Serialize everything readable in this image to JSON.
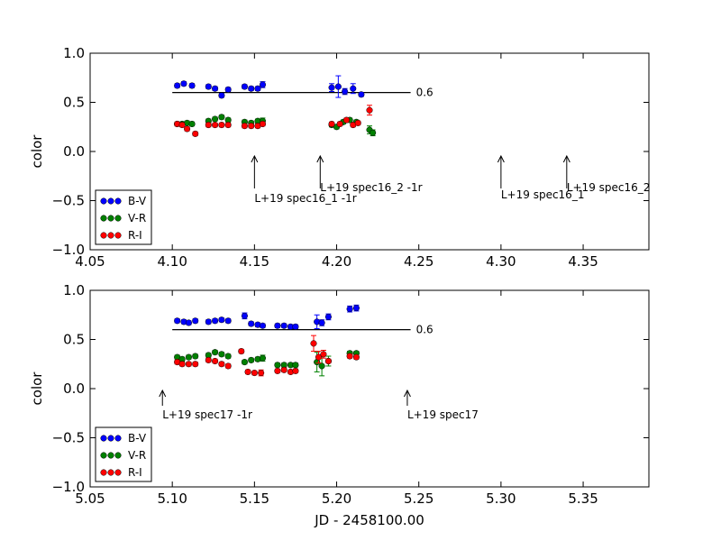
{
  "chart_data": [
    {
      "type": "scatter",
      "title": "",
      "xlabel": "",
      "ylabel": "color",
      "xlim": [
        4.05,
        4.39
      ],
      "ylim": [
        -1.0,
        1.0
      ],
      "xticks": [
        "4.05",
        "4.10",
        "4.15",
        "4.20",
        "4.25",
        "4.30",
        "4.35"
      ],
      "xtick_values": [
        4.05,
        4.1,
        4.15,
        4.2,
        4.25,
        4.3,
        4.35
      ],
      "yticks": [
        "1.0",
        "0.5",
        "0.0",
        "−0.5",
        "−1.0"
      ],
      "ytick_values": [
        1.0,
        0.5,
        0.0,
        -0.5,
        -1.0
      ],
      "reference_line": {
        "y": 0.6,
        "x_start": 4.1,
        "x_end": 4.245,
        "label": "0.6"
      },
      "legend": {
        "location": "lower-left",
        "entries": [
          "B-V",
          "V-R",
          "R-I"
        ]
      },
      "series": [
        {
          "name": "B-V",
          "color": "#0000ff",
          "x": [
            4.103,
            4.107,
            4.112,
            4.122,
            4.126,
            4.13,
            4.134,
            4.144,
            4.148,
            4.152,
            4.155,
            4.197,
            4.201,
            4.205,
            4.21,
            4.215
          ],
          "y": [
            0.67,
            0.69,
            0.67,
            0.66,
            0.64,
            0.57,
            0.63,
            0.66,
            0.64,
            0.64,
            0.68,
            0.65,
            0.66,
            0.61,
            0.64,
            0.58
          ],
          "err": [
            0.02,
            0.02,
            0.02,
            0.02,
            0.02,
            0.02,
            0.02,
            0.02,
            0.02,
            0.02,
            0.03,
            0.04,
            0.11,
            0.03,
            0.05,
            0.02
          ]
        },
        {
          "name": "V-R",
          "color": "#008000",
          "x": [
            4.103,
            4.106,
            4.109,
            4.112,
            4.122,
            4.126,
            4.13,
            4.134,
            4.144,
            4.148,
            4.152,
            4.155,
            4.197,
            4.2,
            4.204,
            4.208,
            4.212,
            4.22,
            4.222
          ],
          "y": [
            0.28,
            0.28,
            0.29,
            0.28,
            0.31,
            0.33,
            0.35,
            0.32,
            0.3,
            0.29,
            0.31,
            0.31,
            0.27,
            0.25,
            0.3,
            0.32,
            0.3,
            0.22,
            0.19
          ],
          "err": [
            0.02,
            0.02,
            0.02,
            0.02,
            0.02,
            0.02,
            0.02,
            0.02,
            0.02,
            0.02,
            0.02,
            0.03,
            0.02,
            0.02,
            0.02,
            0.02,
            0.02,
            0.04,
            0.03
          ]
        },
        {
          "name": "R-I",
          "color": "#ff0000",
          "x": [
            4.103,
            4.106,
            4.109,
            4.114,
            4.122,
            4.126,
            4.13,
            4.134,
            4.144,
            4.148,
            4.152,
            4.155,
            4.197,
            4.202,
            4.206,
            4.21,
            4.213,
            4.22
          ],
          "y": [
            0.28,
            0.27,
            0.23,
            0.18,
            0.27,
            0.27,
            0.27,
            0.27,
            0.26,
            0.26,
            0.26,
            0.28,
            0.28,
            0.28,
            0.32,
            0.27,
            0.29,
            0.42
          ],
          "err": [
            0.02,
            0.02,
            0.02,
            0.02,
            0.02,
            0.02,
            0.02,
            0.02,
            0.02,
            0.02,
            0.02,
            0.02,
            0.02,
            0.02,
            0.02,
            0.02,
            0.02,
            0.05
          ]
        }
      ],
      "annotations": [
        {
          "text": "L+19 spec16_1 -1r",
          "x": 4.15
        },
        {
          "text": "L+19 spec16_2 -1r",
          "x": 4.19
        },
        {
          "text": "L+19 spec16_1",
          "x": 4.3
        },
        {
          "text": "L+19 spec16_2",
          "x": 4.34
        }
      ]
    },
    {
      "type": "scatter",
      "title": "",
      "xlabel": "JD - 2458100.00",
      "ylabel": "color",
      "xlim": [
        5.05,
        5.39
      ],
      "ylim": [
        -1.0,
        1.0
      ],
      "xticks": [
        "5.05",
        "5.10",
        "5.15",
        "5.20",
        "5.25",
        "5.30",
        "5.35"
      ],
      "xtick_values": [
        5.05,
        5.1,
        5.15,
        5.2,
        5.25,
        5.3,
        5.35
      ],
      "yticks": [
        "1.0",
        "0.5",
        "0.0",
        "−0.5",
        "−1.0"
      ],
      "ytick_values": [
        1.0,
        0.5,
        0.0,
        -0.5,
        -1.0
      ],
      "reference_line": {
        "y": 0.6,
        "x_start": 5.1,
        "x_end": 5.245,
        "label": "0.6"
      },
      "legend": {
        "location": "lower-left",
        "entries": [
          "B-V",
          "V-R",
          "R-I"
        ]
      },
      "series": [
        {
          "name": "B-V",
          "color": "#0000ff",
          "x": [
            5.103,
            5.107,
            5.11,
            5.114,
            5.122,
            5.126,
            5.13,
            5.134,
            5.144,
            5.148,
            5.152,
            5.155,
            5.164,
            5.168,
            5.172,
            5.175,
            5.188,
            5.191,
            5.195,
            5.208,
            5.212
          ],
          "y": [
            0.69,
            0.68,
            0.67,
            0.69,
            0.68,
            0.69,
            0.7,
            0.69,
            0.74,
            0.66,
            0.65,
            0.64,
            0.64,
            0.64,
            0.63,
            0.63,
            0.68,
            0.67,
            0.73,
            0.81,
            0.82
          ],
          "err": [
            0.02,
            0.02,
            0.02,
            0.02,
            0.02,
            0.02,
            0.02,
            0.02,
            0.03,
            0.02,
            0.02,
            0.02,
            0.02,
            0.02,
            0.02,
            0.02,
            0.07,
            0.03,
            0.03,
            0.03,
            0.03
          ]
        },
        {
          "name": "V-R",
          "color": "#008000",
          "x": [
            5.103,
            5.106,
            5.11,
            5.114,
            5.122,
            5.126,
            5.13,
            5.134,
            5.144,
            5.148,
            5.152,
            5.155,
            5.164,
            5.168,
            5.172,
            5.175,
            5.188,
            5.191,
            5.195,
            5.208,
            5.212
          ],
          "y": [
            0.32,
            0.3,
            0.32,
            0.33,
            0.34,
            0.37,
            0.35,
            0.33,
            0.27,
            0.29,
            0.3,
            0.31,
            0.24,
            0.24,
            0.24,
            0.24,
            0.27,
            0.23,
            0.28,
            0.36,
            0.36
          ],
          "err": [
            0.02,
            0.02,
            0.02,
            0.02,
            0.02,
            0.02,
            0.02,
            0.02,
            0.02,
            0.02,
            0.02,
            0.03,
            0.02,
            0.02,
            0.02,
            0.02,
            0.1,
            0.1,
            0.05,
            0.02,
            0.02
          ]
        },
        {
          "name": "R-I",
          "color": "#ff0000",
          "x": [
            5.103,
            5.106,
            5.11,
            5.114,
            5.122,
            5.126,
            5.13,
            5.134,
            5.142,
            5.146,
            5.15,
            5.154,
            5.164,
            5.168,
            5.172,
            5.175,
            5.186,
            5.189,
            5.192,
            5.195,
            5.208,
            5.212
          ],
          "y": [
            0.27,
            0.25,
            0.25,
            0.25,
            0.29,
            0.28,
            0.25,
            0.23,
            0.38,
            0.17,
            0.16,
            0.16,
            0.18,
            0.19,
            0.17,
            0.18,
            0.46,
            0.32,
            0.35,
            0.28,
            0.33,
            0.32
          ],
          "err": [
            0.02,
            0.02,
            0.02,
            0.02,
            0.02,
            0.02,
            0.02,
            0.02,
            0.02,
            0.02,
            0.02,
            0.03,
            0.02,
            0.02,
            0.02,
            0.02,
            0.08,
            0.06,
            0.04,
            0.02,
            0.02,
            0.02
          ]
        }
      ],
      "annotations": [
        {
          "text": "L+19 spec17 -1r",
          "x": 5.094
        },
        {
          "text": "L+19 spec17",
          "x": 5.243
        }
      ]
    }
  ]
}
